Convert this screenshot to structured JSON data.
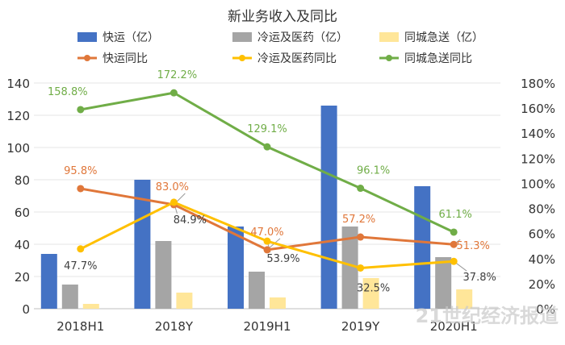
{
  "chart_data": {
    "type": "bar+line",
    "title": "新业务收入及同比",
    "categories": [
      "2018H1",
      "2018Y",
      "2019H1",
      "2019Y",
      "2020H1"
    ],
    "y_left": {
      "min": 0,
      "max": 140,
      "ticks": [
        0,
        20,
        40,
        60,
        80,
        100,
        120,
        140
      ]
    },
    "y_right": {
      "min": 0,
      "max": 180,
      "unit": "%",
      "ticks": [
        0,
        20,
        40,
        60,
        80,
        100,
        120,
        140,
        160,
        180
      ],
      "tick_labels": [
        "0%",
        "20%",
        "40%",
        "60%",
        "80%",
        "100%",
        "120%",
        "140%",
        "160%",
        "180%"
      ]
    },
    "bar_series": [
      {
        "name": "快运（亿）",
        "color": "#4472C4",
        "values": [
          34,
          80,
          51,
          126,
          76
        ]
      },
      {
        "name": "冷运及医药（亿）",
        "color": "#A5A5A5",
        "values": [
          15,
          42,
          23,
          51,
          32
        ]
      },
      {
        "name": "同城急送（亿）",
        "color": "#FFE699",
        "values": [
          3,
          10,
          7,
          19,
          12
        ]
      }
    ],
    "line_series": [
      {
        "name": "快运同比",
        "color": "#E0773A",
        "values": [
          95.8,
          83.0,
          47.0,
          57.2,
          51.3
        ],
        "labels": [
          "95.8%",
          "83.0%",
          "47.0%",
          "57.2%",
          "51.3%"
        ]
      },
      {
        "name": "冷运及医药同比",
        "color": "#FFC000",
        "values": [
          47.7,
          84.9,
          53.9,
          32.5,
          37.8
        ],
        "labels": [
          "47.7%",
          "84.9%",
          "53.9%",
          "32.5%",
          "37.8%"
        ]
      },
      {
        "name": "同城急送同比",
        "color": "#70AD47",
        "values": [
          158.8,
          172.2,
          129.1,
          96.1,
          61.1
        ],
        "labels": [
          "158.8%",
          "172.2%",
          "129.1%",
          "96.1%",
          "61.1%"
        ]
      }
    ],
    "watermark": "21世纪经济报道"
  }
}
